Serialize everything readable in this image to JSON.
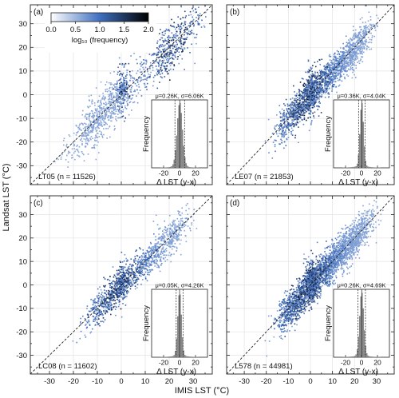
{
  "figure": {
    "ylabel": "Landsat LST (°C)",
    "xlabel": "IMIS LST (°C)",
    "colorbar": {
      "label": "log₁₀ (frequency)",
      "ticks": [
        "0.0",
        "0.5",
        "1.0",
        "1.5",
        "2.0"
      ],
      "range": [
        0,
        2
      ],
      "color_low": "#ffffff",
      "color_mid": "#3f6fbf",
      "color_high": "#000000"
    }
  },
  "chart_data": [
    {
      "type": "heatmap",
      "panel_label": "(a)",
      "annotation": "LT05 (n = 11526)",
      "xlim": [
        -38,
        38
      ],
      "ylim": [
        -38,
        38
      ],
      "x_ticks": [],
      "y_ticks": [
        -30,
        -20,
        -10,
        0,
        10,
        20,
        30
      ],
      "identity_line": true,
      "grid": true,
      "inset": {
        "type": "histogram",
        "title": "μ=0.26K, σ=6.06K",
        "xlabel": "Δ LST (y-x)",
        "ylabel": "Frequency",
        "x_ticks": [
          -20,
          0,
          20
        ],
        "mean": 0.26,
        "sd": 6.06
      }
    },
    {
      "type": "heatmap",
      "panel_label": "(b)",
      "annotation": "LE07 (n = 21853)",
      "xlim": [
        -38,
        38
      ],
      "ylim": [
        -38,
        38
      ],
      "x_ticks": [],
      "y_ticks": [],
      "identity_line": true,
      "grid": true,
      "inset": {
        "type": "histogram",
        "title": "μ=0.36K, σ=4.04K",
        "xlabel": "Δ LST (y-x)",
        "ylabel": "Frequency",
        "x_ticks": [
          -20,
          0,
          20
        ],
        "mean": 0.36,
        "sd": 4.04
      }
    },
    {
      "type": "heatmap",
      "panel_label": "(c)",
      "annotation": "LC08 (n = 11602)",
      "xlim": [
        -38,
        38
      ],
      "ylim": [
        -38,
        38
      ],
      "x_ticks": [
        -30,
        -20,
        -10,
        0,
        10,
        20,
        30
      ],
      "y_ticks": [
        -30,
        -20,
        -10,
        0,
        10,
        20,
        30
      ],
      "identity_line": true,
      "grid": true,
      "inset": {
        "type": "histogram",
        "title": "μ=0.05K, σ=4.26K",
        "xlabel": "Δ LST (y-x)",
        "ylabel": "Frequency",
        "x_ticks": [
          -20,
          0,
          20
        ],
        "mean": 0.05,
        "sd": 4.26
      }
    },
    {
      "type": "heatmap",
      "panel_label": "(d)",
      "annotation": "L578 (n = 44981)",
      "xlim": [
        -38,
        38
      ],
      "ylim": [
        -38,
        38
      ],
      "x_ticks": [
        -30,
        -20,
        -10,
        0,
        10,
        20,
        30
      ],
      "y_ticks": [],
      "identity_line": true,
      "grid": true,
      "inset": {
        "type": "histogram",
        "title": "μ=0.26K, σ=4.69K",
        "xlabel": "Δ LST (y-x)",
        "ylabel": "Frequency",
        "x_ticks": [
          -20,
          0,
          20
        ],
        "mean": 0.26,
        "sd": 4.69
      }
    }
  ]
}
